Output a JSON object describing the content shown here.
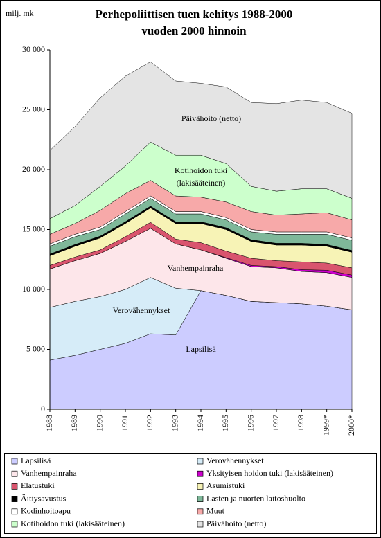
{
  "chart_data": {
    "type": "stacked-area",
    "title": [
      "Perhepoliittisen tuen kehitys 1988-2000",
      "vuoden 2000 hinnoin"
    ],
    "y_label": "milj. mk",
    "categories": [
      "1988",
      "1989",
      "1990",
      "1991",
      "1992",
      "1993",
      "1994",
      "1995",
      "1996",
      "1997",
      "1998",
      "1999*",
      "2000*"
    ],
    "ylim": [
      0,
      30000
    ],
    "yticks": [
      0,
      {
        "value": 5000,
        "label": "5 000"
      },
      {
        "value": 10000,
        "label": "10 000"
      },
      {
        "value": 15000,
        "label": "15 000"
      },
      {
        "value": 20000,
        "label": "20 000"
      },
      {
        "value": 25000,
        "label": "25 000"
      },
      {
        "value": 30000,
        "label": "30 000"
      }
    ],
    "grid": false,
    "series": [
      {
        "name": "Lapsilisä",
        "color": "#ccccff",
        "values": [
          4100,
          4500,
          5000,
          5500,
          6300,
          6200,
          9900,
          9500,
          9000,
          8900,
          8800,
          8600,
          8300
        ]
      },
      {
        "name": "Verovähennykset",
        "color": "#d6ecf8",
        "values": [
          4400,
          4500,
          4400,
          4500,
          4700,
          3900,
          0,
          0,
          0,
          0,
          0,
          0,
          0
        ]
      },
      {
        "name": "Vanhempainraha",
        "color": "#fde6ea",
        "values": [
          3200,
          3400,
          3600,
          4000,
          4100,
          3700,
          3400,
          3100,
          2900,
          2900,
          2700,
          2800,
          2700
        ]
      },
      {
        "name": "Yksityisen hoidon tuki (lakisääteinen)",
        "color": "#cc00cc",
        "values": [
          0,
          0,
          0,
          0,
          0,
          0,
          0,
          50,
          100,
          100,
          150,
          200,
          200
        ]
      },
      {
        "name": "Elatustuki",
        "color": "#d9546e",
        "values": [
          300,
          300,
          300,
          400,
          500,
          400,
          600,
          550,
          600,
          500,
          650,
          600,
          600
        ]
      },
      {
        "name": "Asumistuki",
        "color": "#f7f3b6",
        "values": [
          800,
          900,
          1000,
          1100,
          1200,
          1300,
          1600,
          1800,
          1400,
          1300,
          1400,
          1400,
          1300
        ]
      },
      {
        "name": "Äitiysavustus",
        "color": "#000000",
        "values": [
          150,
          150,
          150,
          150,
          150,
          150,
          150,
          150,
          150,
          150,
          150,
          150,
          150
        ]
      },
      {
        "name": "Lasten ja nuorten laitoshuolto",
        "color": "#7fb89a",
        "values": [
          650,
          650,
          550,
          650,
          650,
          650,
          650,
          650,
          650,
          750,
          750,
          850,
          850
        ]
      },
      {
        "name": "Kodinhoitoapu",
        "color": "#ffffff",
        "values": [
          200,
          200,
          200,
          200,
          200,
          200,
          200,
          200,
          200,
          200,
          200,
          200,
          200
        ]
      },
      {
        "name": "Muut",
        "color": "#f7a9a9",
        "values": [
          800,
          900,
          1400,
          1500,
          1300,
          1300,
          1200,
          1300,
          1500,
          1400,
          1500,
          1600,
          1500
        ]
      },
      {
        "name": "Kotihoidon tuki (lakisääteinen)",
        "color": "#ccffcc",
        "values": [
          1300,
          1500,
          2000,
          2300,
          3200,
          3400,
          3500,
          3200,
          2100,
          2000,
          2100,
          2000,
          1800
        ]
      },
      {
        "name": "Päivähoito (netto)",
        "color": "#e4e4e4",
        "values": [
          5700,
          6600,
          7400,
          7500,
          6700,
          6200,
          6000,
          6400,
          7000,
          7300,
          7400,
          7200,
          7100
        ]
      }
    ],
    "annotations": [
      "Päivähoito (netto)",
      "Kotihoidon tuki",
      "(lakisääteinen)",
      "Vanhempainraha",
      "Verovähennykset",
      "Lapsilisä"
    ]
  }
}
